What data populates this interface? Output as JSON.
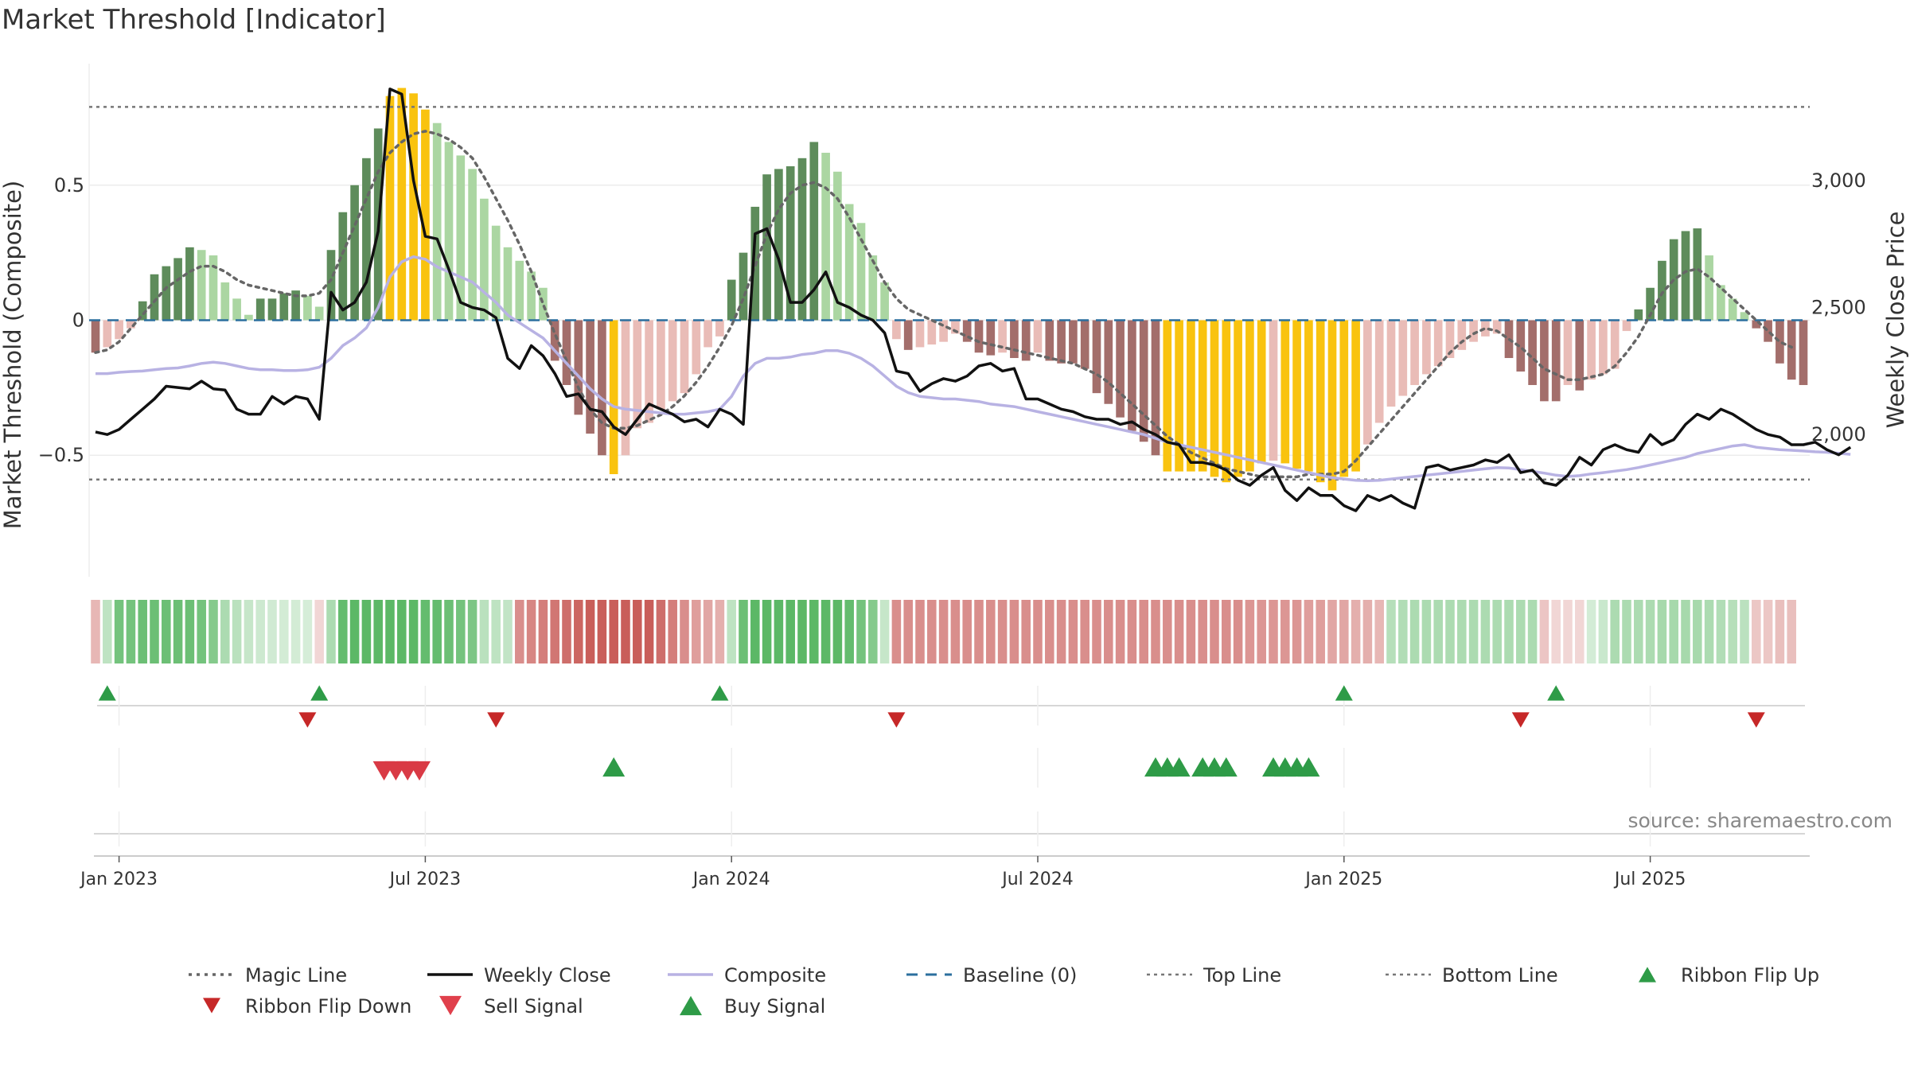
{
  "colors": {
    "bar_pos_strong": "#5e8c5b",
    "bar_pos_weak": "#abd6a2",
    "bar_neg_strong": "#a36e6b",
    "bar_neg_weak": "#e9bcb7",
    "bar_extreme": "#f9c30f",
    "close_line": "#111111",
    "composite_line": "#b8b2e3",
    "magic_line": "#666666",
    "baseline": "#2b6f9e",
    "threshold_lines": "#777777",
    "buy": "#2e9b47",
    "sell": "#d93a45",
    "ribbon_green": "#5cb866",
    "ribbon_red": "#c95e5a"
  },
  "chart_data": {
    "type": "bar",
    "title": "Market Threshold [Indicator]",
    "ylabel": "Market Threshold (Composite)",
    "y2label": "Weekly Close Price",
    "ylim": [
      -0.95,
      0.95
    ],
    "y2lim": [
      1440,
      3460
    ],
    "yticks": [
      0.5,
      0,
      -0.5
    ],
    "ytick_labels": [
      "0.5",
      "0",
      "−0.5"
    ],
    "y2ticks": [
      3000,
      2500,
      2000
    ],
    "y2tick_labels": [
      "3,000",
      "2,500",
      "2,000"
    ],
    "xticks": [
      "Jan 2023",
      "Jul 2023",
      "Jan 2024",
      "Jul 2024",
      "Jan 2025",
      "Jul 2025"
    ],
    "xtick_week_index": [
      2,
      28,
      54,
      80,
      106,
      132
    ],
    "top_line": 0.79,
    "bottom_line": -0.59,
    "baseline": 0,
    "composite_bars": [
      -0.12,
      -0.1,
      -0.07,
      -0.03,
      0.07,
      0.17,
      0.2,
      0.23,
      0.27,
      0.26,
      0.24,
      0.14,
      0.08,
      0.02,
      0.08,
      0.08,
      0.1,
      0.11,
      0.09,
      0.05,
      0.26,
      0.4,
      0.5,
      0.6,
      0.71,
      0.83,
      0.86,
      0.84,
      0.78,
      0.73,
      0.66,
      0.61,
      0.56,
      0.45,
      0.35,
      0.27,
      0.22,
      0.18,
      0.12,
      -0.15,
      -0.24,
      -0.35,
      -0.42,
      -0.5,
      -0.57,
      -0.5,
      -0.4,
      -0.38,
      -0.33,
      -0.3,
      -0.27,
      -0.2,
      -0.1,
      -0.06,
      0.15,
      0.25,
      0.42,
      0.54,
      0.56,
      0.57,
      0.6,
      0.66,
      0.62,
      0.55,
      0.43,
      0.36,
      0.24,
      0.14,
      -0.07,
      -0.11,
      -0.1,
      -0.09,
      -0.08,
      -0.05,
      -0.08,
      -0.12,
      -0.13,
      -0.12,
      -0.14,
      -0.15,
      -0.12,
      -0.15,
      -0.16,
      -0.16,
      -0.18,
      -0.27,
      -0.31,
      -0.36,
      -0.41,
      -0.45,
      -0.5,
      -0.56,
      -0.56,
      -0.56,
      -0.56,
      -0.58,
      -0.6,
      -0.58,
      -0.56,
      -0.53,
      -0.52,
      -0.53,
      -0.55,
      -0.56,
      -0.6,
      -0.63,
      -0.58,
      -0.56,
      -0.46,
      -0.38,
      -0.32,
      -0.28,
      -0.24,
      -0.2,
      -0.17,
      -0.14,
      -0.11,
      -0.08,
      -0.06,
      -0.05,
      -0.14,
      -0.19,
      -0.24,
      -0.3,
      -0.3,
      -0.24,
      -0.26,
      -0.22,
      -0.2,
      -0.18,
      -0.04,
      0.04,
      0.12,
      0.22,
      0.3,
      0.33,
      0.34,
      0.24,
      0.13,
      0.08,
      0.03,
      -0.03,
      -0.08,
      -0.16,
      -0.22,
      -0.24
    ],
    "weekly_close": [
      2010,
      2000,
      2020,
      2060,
      2100,
      2140,
      2190,
      2185,
      2180,
      2210,
      2180,
      2175,
      2100,
      2080,
      2080,
      2150,
      2120,
      2150,
      2140,
      2060,
      2560,
      2490,
      2520,
      2600,
      2800,
      3360,
      3340,
      3000,
      2780,
      2770,
      2650,
      2520,
      2500,
      2490,
      2460,
      2300,
      2260,
      2350,
      2310,
      2240,
      2150,
      2160,
      2100,
      2090,
      2030,
      2000,
      2060,
      2120,
      2100,
      2080,
      2050,
      2060,
      2030,
      2100,
      2080,
      2040,
      2790,
      2810,
      2690,
      2520,
      2520,
      2570,
      2640,
      2520,
      2500,
      2470,
      2450,
      2400,
      2250,
      2240,
      2170,
      2200,
      2220,
      2210,
      2230,
      2270,
      2280,
      2250,
      2260,
      2140,
      2140,
      2120,
      2100,
      2090,
      2070,
      2060,
      2060,
      2040,
      2050,
      2020,
      2000,
      1970,
      1960,
      1890,
      1890,
      1880,
      1860,
      1820,
      1800,
      1840,
      1870,
      1780,
      1740,
      1790,
      1760,
      1760,
      1720,
      1700,
      1760,
      1740,
      1760,
      1730,
      1710,
      1870,
      1880,
      1860,
      1870,
      1880,
      1900,
      1890,
      1920,
      1850,
      1860,
      1810,
      1800,
      1840,
      1910,
      1880,
      1940,
      1960,
      1940,
      1930,
      2000,
      1960,
      1980,
      2040,
      2080,
      2060,
      2100,
      2080,
      2050,
      2020,
      2000,
      1990,
      1960,
      1960,
      1970,
      1940,
      1920,
      1950
    ],
    "composite_line": [
      2240,
      2240,
      2245,
      2248,
      2250,
      2255,
      2260,
      2262,
      2270,
      2280,
      2285,
      2280,
      2270,
      2260,
      2255,
      2255,
      2252,
      2252,
      2255,
      2265,
      2300,
      2350,
      2380,
      2420,
      2500,
      2620,
      2680,
      2700,
      2690,
      2660,
      2640,
      2620,
      2600,
      2560,
      2520,
      2470,
      2440,
      2410,
      2380,
      2330,
      2280,
      2230,
      2180,
      2140,
      2110,
      2100,
      2095,
      2090,
      2085,
      2080,
      2080,
      2085,
      2090,
      2100,
      2150,
      2230,
      2280,
      2300,
      2300,
      2305,
      2315,
      2320,
      2330,
      2330,
      2320,
      2300,
      2270,
      2230,
      2190,
      2165,
      2150,
      2145,
      2140,
      2140,
      2135,
      2130,
      2120,
      2115,
      2110,
      2100,
      2090,
      2080,
      2070,
      2060,
      2050,
      2040,
      2030,
      2020,
      2010,
      2000,
      1985,
      1970,
      1960,
      1950,
      1940,
      1930,
      1920,
      1910,
      1900,
      1890,
      1880,
      1870,
      1860,
      1850,
      1840,
      1830,
      1825,
      1820,
      1818,
      1820,
      1825,
      1830,
      1835,
      1840,
      1845,
      1850,
      1855,
      1860,
      1865,
      1870,
      1868,
      1862,
      1855,
      1848,
      1840,
      1835,
      1838,
      1845,
      1850,
      1856,
      1862,
      1870,
      1880,
      1890,
      1900,
      1910,
      1925,
      1935,
      1945,
      1955,
      1960,
      1950,
      1945,
      1940,
      1938,
      1935,
      1932,
      1930,
      1926,
      1922
    ],
    "magic_line": [
      -0.12,
      -0.11,
      -0.08,
      -0.03,
      0.02,
      0.07,
      0.12,
      0.15,
      0.18,
      0.2,
      0.2,
      0.18,
      0.15,
      0.13,
      0.12,
      0.11,
      0.1,
      0.09,
      0.09,
      0.1,
      0.15,
      0.25,
      0.35,
      0.45,
      0.55,
      0.62,
      0.66,
      0.69,
      0.7,
      0.69,
      0.67,
      0.64,
      0.6,
      0.53,
      0.45,
      0.37,
      0.28,
      0.18,
      0.06,
      -0.05,
      -0.15,
      -0.25,
      -0.33,
      -0.38,
      -0.4,
      -0.4,
      -0.39,
      -0.37,
      -0.35,
      -0.32,
      -0.28,
      -0.23,
      -0.17,
      -0.1,
      -0.02,
      0.08,
      0.2,
      0.32,
      0.41,
      0.47,
      0.5,
      0.51,
      0.49,
      0.45,
      0.38,
      0.3,
      0.22,
      0.14,
      0.08,
      0.04,
      0.02,
      0.0,
      -0.02,
      -0.04,
      -0.06,
      -0.08,
      -0.09,
      -0.1,
      -0.11,
      -0.12,
      -0.13,
      -0.14,
      -0.15,
      -0.16,
      -0.18,
      -0.2,
      -0.23,
      -0.27,
      -0.31,
      -0.35,
      -0.39,
      -0.43,
      -0.46,
      -0.49,
      -0.51,
      -0.53,
      -0.55,
      -0.56,
      -0.57,
      -0.58,
      -0.58,
      -0.58,
      -0.58,
      -0.57,
      -0.57,
      -0.57,
      -0.56,
      -0.52,
      -0.47,
      -0.42,
      -0.37,
      -0.32,
      -0.27,
      -0.22,
      -0.17,
      -0.12,
      -0.08,
      -0.05,
      -0.03,
      -0.04,
      -0.07,
      -0.1,
      -0.14,
      -0.18,
      -0.2,
      -0.22,
      -0.22,
      -0.21,
      -0.2,
      -0.17,
      -0.12,
      -0.06,
      0.02,
      0.1,
      0.15,
      0.18,
      0.19,
      0.16,
      0.12,
      0.08,
      0.04,
      0.0,
      -0.04,
      -0.08,
      -0.1
    ],
    "ribbon_levels": [
      -1,
      0.5,
      1,
      1,
      1,
      1,
      1,
      1,
      1,
      1,
      1,
      0.6,
      0.5,
      0.4,
      0.3,
      0.2,
      0.2,
      0.2,
      0.1,
      -0.2,
      0.6,
      1,
      1,
      1,
      1,
      1,
      1,
      1,
      1,
      1,
      1,
      1,
      1,
      0.5,
      0.5,
      0.5,
      -1,
      -1,
      -1,
      -1,
      -1,
      -1,
      -1,
      -1,
      -1,
      -1,
      -1,
      -1,
      -1,
      -1,
      -1,
      -1,
      -1,
      -1,
      0.5,
      1,
      1,
      1,
      1,
      1,
      1,
      1,
      1,
      1,
      1,
      1,
      1,
      0.5,
      -1,
      -1,
      -1,
      -1,
      -1,
      -1,
      -1,
      -1,
      -1,
      -1,
      -1,
      -1,
      -1,
      -1,
      -1,
      -1,
      -1,
      -1,
      -1,
      -1,
      -1,
      -1,
      -1,
      -1,
      -1,
      -1,
      -1,
      -1,
      -1,
      -1,
      -1,
      -1,
      -1,
      -1,
      -1,
      -1,
      -1,
      -1,
      -1,
      -1,
      -1,
      -1,
      0.6,
      0.6,
      0.6,
      0.6,
      0.6,
      0.6,
      0.6,
      0.6,
      0.6,
      0.6,
      0.6,
      0.6,
      0.6,
      -0.2,
      -0.2,
      -0.2,
      -0.2,
      0.4,
      0.6,
      0.6,
      0.6,
      0.6,
      0.6,
      0.6,
      0.6,
      0.6,
      0.6,
      0.6,
      0.6,
      0.6,
      0.6,
      -0.5,
      -0.5,
      -0.5,
      -0.5
    ],
    "ribbon_intensity": [
      0.3,
      0.5,
      0.7,
      0.7,
      0.75,
      0.75,
      0.75,
      0.75,
      0.75,
      0.7,
      0.6,
      0.6,
      0.55,
      0.5,
      0.45,
      0.4,
      0.35,
      0.35,
      0.3,
      0.3,
      0.6,
      0.8,
      0.85,
      0.85,
      0.9,
      0.9,
      0.9,
      0.85,
      0.8,
      0.8,
      0.75,
      0.7,
      0.65,
      0.55,
      0.5,
      0.45,
      0.55,
      0.6,
      0.65,
      0.7,
      0.75,
      0.8,
      0.85,
      0.9,
      0.95,
      0.95,
      0.9,
      0.85,
      0.75,
      0.65,
      0.55,
      0.45,
      0.4,
      0.35,
      0.5,
      0.75,
      0.85,
      0.9,
      0.9,
      0.9,
      0.9,
      0.9,
      0.9,
      0.85,
      0.8,
      0.7,
      0.6,
      0.4,
      0.55,
      0.55,
      0.55,
      0.55,
      0.55,
      0.55,
      0.55,
      0.55,
      0.55,
      0.55,
      0.55,
      0.55,
      0.55,
      0.55,
      0.55,
      0.55,
      0.55,
      0.55,
      0.55,
      0.55,
      0.55,
      0.55,
      0.55,
      0.55,
      0.55,
      0.55,
      0.55,
      0.55,
      0.55,
      0.55,
      0.5,
      0.5,
      0.5,
      0.5,
      0.5,
      0.45,
      0.45,
      0.4,
      0.4,
      0.35,
      0.35,
      0.3,
      0.5,
      0.55,
      0.6,
      0.6,
      0.6,
      0.6,
      0.6,
      0.6,
      0.6,
      0.6,
      0.6,
      0.6,
      0.6,
      0.6,
      0.3,
      0.3,
      0.3,
      0.3,
      0.3,
      0.6,
      0.6,
      0.6,
      0.6,
      0.65,
      0.65,
      0.65,
      0.65,
      0.6,
      0.55,
      0.5,
      0.45,
      0.4,
      0.4,
      0.5,
      0.5,
      0.5,
      0.5
    ],
    "ribbon_flip_up": [
      1,
      19,
      53,
      106,
      124
    ],
    "ribbon_flip_down": [
      18,
      34,
      68,
      121,
      141
    ],
    "sell_signals": [
      24.5,
      25.5,
      26.5,
      27.5
    ],
    "buy_signals": [
      44,
      90,
      91,
      92,
      94,
      95,
      96,
      100,
      101,
      102,
      103
    ]
  },
  "source_note": "source: sharemaestro.com",
  "legend": [
    {
      "label": "Magic Line",
      "kind": "dotted",
      "color": "#666666"
    },
    {
      "label": "Weekly Close",
      "kind": "solid",
      "color": "#111111"
    },
    {
      "label": "Composite",
      "kind": "solid",
      "color": "#b8b2e3"
    },
    {
      "label": "Baseline (0)",
      "kind": "dashed",
      "color": "#2b6f9e"
    },
    {
      "label": "Top Line",
      "kind": "dotted-thin",
      "color": "#777777"
    },
    {
      "label": "Bottom Line",
      "kind": "dotted-thin",
      "color": "#777777"
    },
    {
      "label": "Ribbon Flip Up",
      "kind": "tri-up",
      "color": "#2e9b47"
    },
    {
      "label": "Ribbon Flip Down",
      "kind": "tri-down",
      "color": "#c62828"
    },
    {
      "label": "Sell Signal",
      "kind": "tri-down-big",
      "color": "#e0404c"
    },
    {
      "label": "Buy Signal",
      "kind": "tri-up-big",
      "color": "#2e9b47"
    }
  ]
}
